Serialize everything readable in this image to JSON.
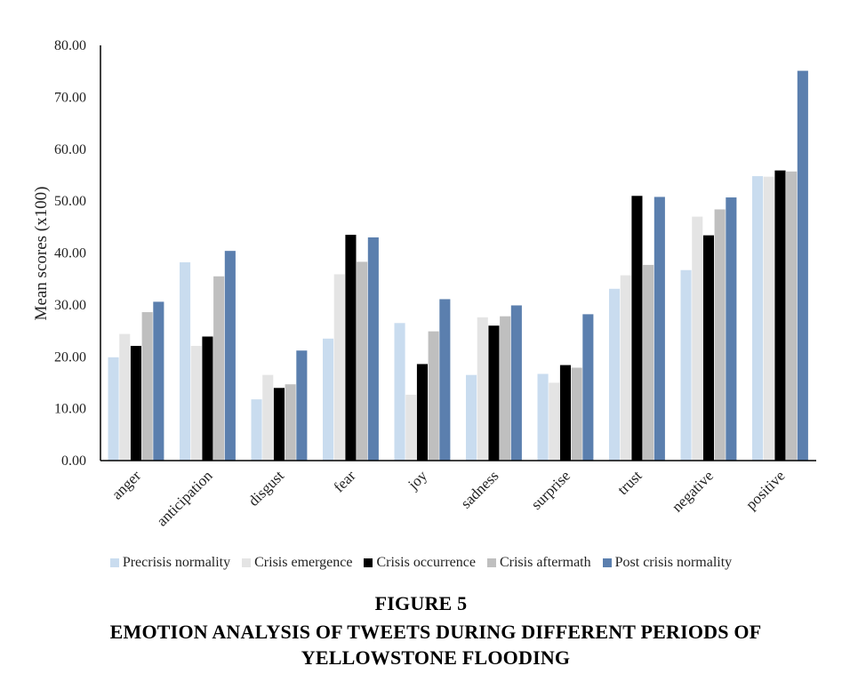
{
  "figure": {
    "number": "FIGURE 5",
    "title": "EMOTION ANALYSIS OF TWEETS DURING DIFFERENT PERIODS OF YELLOWSTONE FLOODING"
  },
  "chart_data": {
    "type": "bar",
    "title": "",
    "xlabel": "",
    "ylabel": "Mean scores (x100)",
    "ylim": [
      0,
      80
    ],
    "yticks": [
      "0.00",
      "10.00",
      "20.00",
      "30.00",
      "40.00",
      "50.00",
      "60.00",
      "70.00",
      "80.00"
    ],
    "grid": false,
    "legend_position": "bottom",
    "categories": [
      "anger",
      "anticipation",
      "disgust",
      "fear",
      "joy",
      "sadness",
      "surprise",
      "trust",
      "negative",
      "positive"
    ],
    "series": [
      {
        "name": "Precrisis normality",
        "color": "#c9dcef",
        "values": [
          19.9,
          38.2,
          11.8,
          23.5,
          26.5,
          16.5,
          16.7,
          33.1,
          36.7,
          54.8
        ]
      },
      {
        "name": "Crisis emergence",
        "color": "#e4e4e4",
        "values": [
          24.4,
          22.1,
          16.5,
          35.9,
          12.7,
          27.6,
          15.0,
          35.7,
          47.0,
          54.7
        ]
      },
      {
        "name": "Crisis occurrence",
        "color": "#000000",
        "values": [
          22.1,
          23.9,
          14.0,
          43.5,
          18.6,
          26.0,
          18.4,
          51.0,
          43.4,
          55.9
        ]
      },
      {
        "name": "Crisis aftermath",
        "color": "#bfbfbf",
        "values": [
          28.6,
          35.5,
          14.7,
          38.3,
          24.9,
          27.8,
          17.9,
          37.7,
          48.4,
          55.7
        ]
      },
      {
        "name": "Post crisis normality",
        "color": "#5b7fae",
        "values": [
          30.6,
          40.4,
          21.2,
          43.0,
          31.1,
          29.9,
          28.2,
          50.8,
          50.7,
          75.1
        ]
      }
    ]
  }
}
